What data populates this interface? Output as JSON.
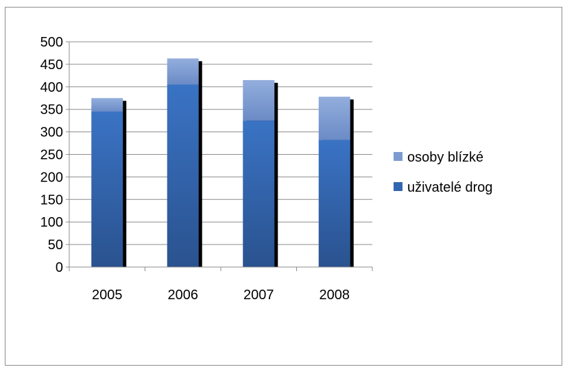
{
  "chart_data": {
    "type": "bar",
    "stacked": true,
    "categories": [
      "2005",
      "2006",
      "2007",
      "2008"
    ],
    "series": [
      {
        "name": "uživatelé drog",
        "values": [
          345,
          405,
          325,
          282
        ],
        "color": "#3366b0"
      },
      {
        "name": "osoby blízké",
        "values": [
          30,
          58,
          90,
          96
        ],
        "color": "#7d9bd1"
      }
    ],
    "ylim": [
      0,
      500
    ],
    "yticks": [
      0,
      50,
      100,
      150,
      200,
      250,
      300,
      350,
      400,
      450,
      500
    ],
    "grid": true,
    "legend_position": "right",
    "title": "",
    "xlabel": "",
    "ylabel": ""
  }
}
